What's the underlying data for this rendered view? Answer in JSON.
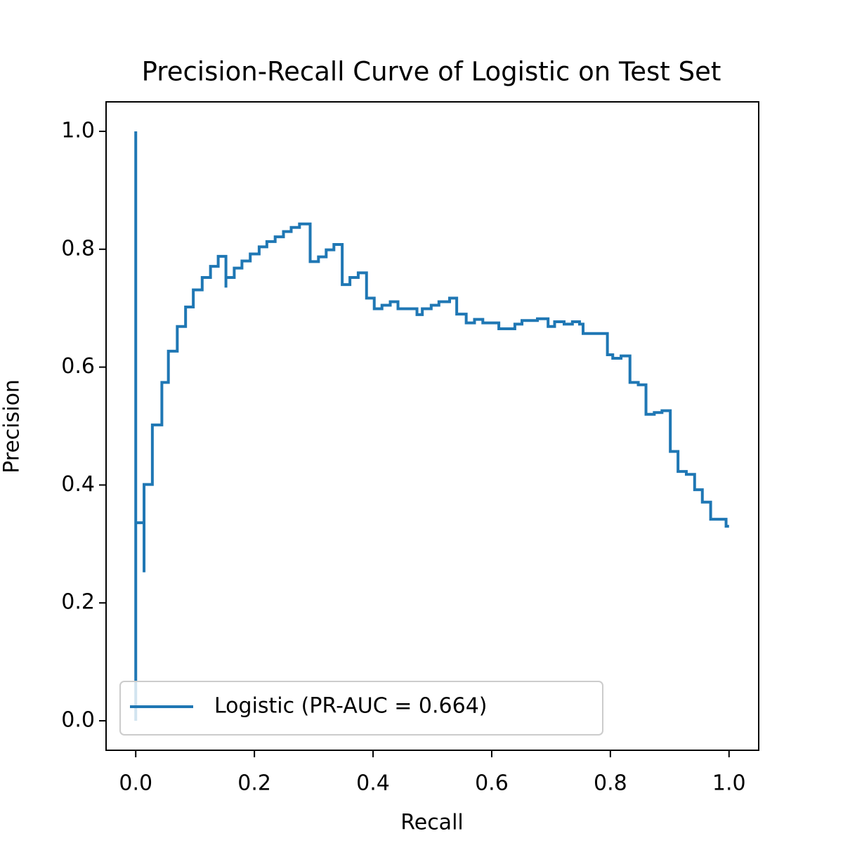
{
  "chart_data": {
    "type": "line",
    "drawstyle": "steps-pre",
    "title": "Precision-Recall Curve of Logistic on Test Set",
    "x_label": "Recall",
    "y_label": "Precision",
    "xlim": [
      -0.05,
      1.05
    ],
    "ylim": [
      -0.05,
      1.05
    ],
    "xticks": [
      {
        "value": 0,
        "label": "0.0"
      },
      0.2,
      0.4,
      0.6,
      0.8,
      {
        "value": 1,
        "label": "1.0"
      }
    ],
    "yticks": [
      {
        "value": 0,
        "label": "0.0"
      },
      0.2,
      0.4,
      0.6,
      0.8,
      {
        "value": 1,
        "label": "1.0"
      }
    ],
    "legend": "lower left",
    "series": [
      {
        "name": "Logistic (PR-AUC = 0.664)",
        "color": "#1f77b4",
        "x": [
          0,
          0,
          0.014,
          0.014,
          0.028,
          0.044,
          0.055,
          0.07,
          0.084,
          0.097,
          0.112,
          0.126,
          0.139,
          0.152,
          0.152,
          0.166,
          0.179,
          0.193,
          0.208,
          0.221,
          0.235,
          0.249,
          0.262,
          0.276,
          0.294,
          0.308,
          0.321,
          0.334,
          0.348,
          0.361,
          0.375,
          0.389,
          0.402,
          0.415,
          0.429,
          0.442,
          0.474,
          0.483,
          0.498,
          0.511,
          0.529,
          0.541,
          0.557,
          0.571,
          0.585,
          0.612,
          0.639,
          0.651,
          0.677,
          0.695,
          0.706,
          0.722,
          0.736,
          0.748,
          0.754,
          0.795,
          0.804,
          0.818,
          0.833,
          0.847,
          0.86,
          0.874,
          0.887,
          0.901,
          0.914,
          0.928,
          0.942,
          0.955,
          0.969,
          0.983,
          0.995,
          1.0,
          1.0
        ],
        "values": [
          1.0,
          0.0,
          0.336,
          0.252,
          0.401,
          0.502,
          0.574,
          0.627,
          0.669,
          0.702,
          0.731,
          0.752,
          0.771,
          0.788,
          0.735,
          0.752,
          0.768,
          0.78,
          0.792,
          0.804,
          0.813,
          0.821,
          0.83,
          0.837,
          0.843,
          0.779,
          0.787,
          0.799,
          0.808,
          0.74,
          0.752,
          0.76,
          0.717,
          0.699,
          0.705,
          0.711,
          0.699,
          0.689,
          0.699,
          0.705,
          0.711,
          0.717,
          0.69,
          0.675,
          0.681,
          0.675,
          0.665,
          0.673,
          0.679,
          0.682,
          0.669,
          0.677,
          0.673,
          0.677,
          0.673,
          0.657,
          0.621,
          0.615,
          0.619,
          0.574,
          0.57,
          0.52,
          0.523,
          0.526,
          0.457,
          0.423,
          0.418,
          0.392,
          0.371,
          0.342,
          0.342,
          0.33,
          0.33
        ]
      }
    ]
  }
}
